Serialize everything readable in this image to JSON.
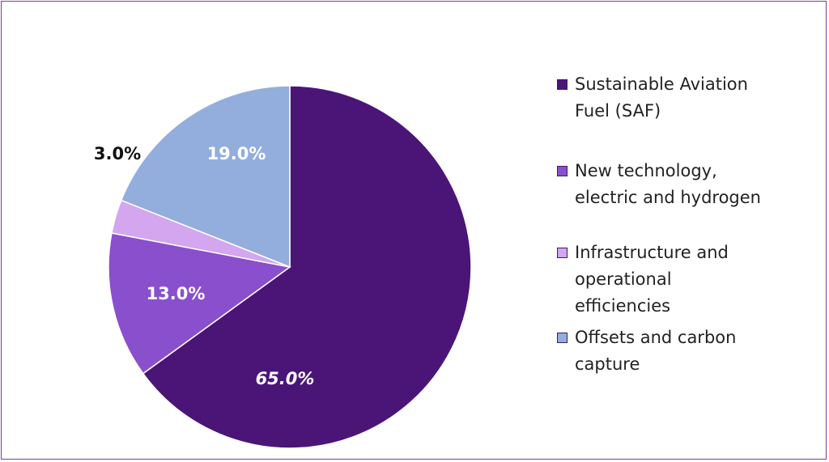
{
  "chart_data": {
    "type": "pie",
    "title": "",
    "legend_position": "right",
    "slices": [
      {
        "label": "Sustainable Aviation Fuel (SAF)",
        "value": 65.0,
        "value_label": "65.0%",
        "color": "#4b1578",
        "label_color": "#ffffff"
      },
      {
        "label": "New technology, electric and hydrogen",
        "value": 13.0,
        "value_label": "13.0%",
        "color": "#8a4fcc",
        "label_color": "#ffffff"
      },
      {
        "label": "Infrastructure and operational efficiencies",
        "value": 3.0,
        "value_label": "3.0%",
        "color": "#d3a6ef",
        "label_color": "#111111"
      },
      {
        "label": "Offsets and carbon capture",
        "value": 19.0,
        "value_label": "19.0%",
        "color": "#93aedc",
        "label_color": "#ffffff"
      }
    ]
  }
}
